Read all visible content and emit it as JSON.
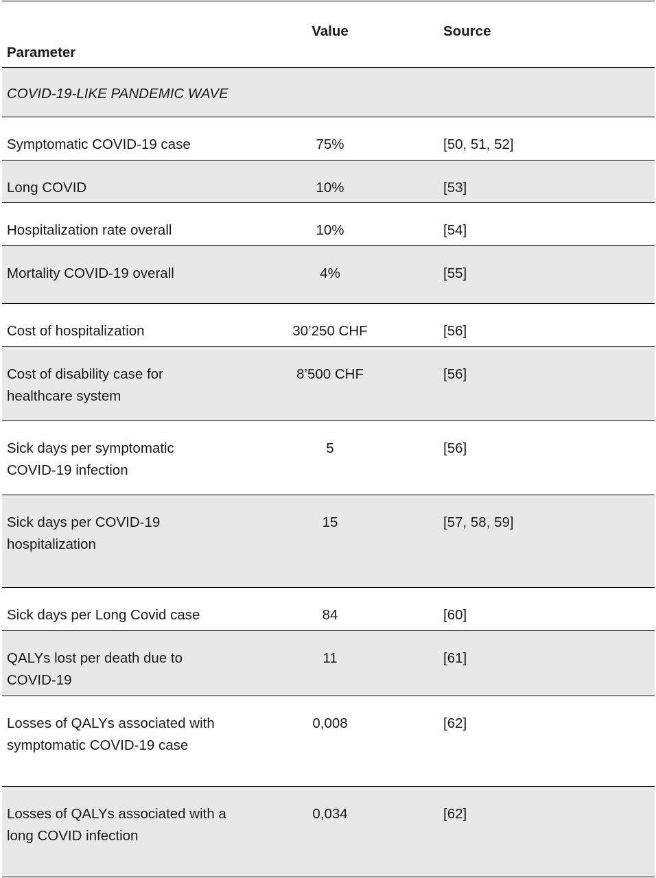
{
  "header": {
    "parameter": "Parameter",
    "value": "Value",
    "source": "Source"
  },
  "section": "COVID-19-LIKE PANDEMIC WAVE",
  "rows": [
    {
      "parameter": "Symptomatic COVID-19 case",
      "value": "75%",
      "source": "[50, 51, 52]"
    },
    {
      "parameter": "Long COVID",
      "value": "10%",
      "source": "[53]"
    },
    {
      "parameter": "Hospitalization rate overall",
      "value": "10%",
      "source": "[54]"
    },
    {
      "parameter": "Mortality COVID-19 overall",
      "value": "4%",
      "source": "[55]"
    },
    {
      "parameter": "Cost of hospitalization",
      "value": "30’250 CHF",
      "source": "[56]"
    },
    {
      "parameter": "Cost of disability case for healthcare system",
      "value": "8’500 CHF",
      "source": "[56]"
    },
    {
      "parameter": "Sick days per symptomatic COVID-19 infection",
      "value": "5",
      "source": "[56]"
    },
    {
      "parameter": "Sick days per COVID-19 hospitalization",
      "value": "15",
      "source": "[57, 58, 59]"
    },
    {
      "parameter": "Sick days per Long Covid case",
      "value": "84",
      "source": "[60]"
    },
    {
      "parameter": "QALYs lost per death due to COVID-19",
      "value": "11",
      "source": "[61]"
    },
    {
      "parameter": "Losses of QALYs associated with symptomatic COVID-19 case",
      "value": "0,008",
      "source": "[62]"
    },
    {
      "parameter": "Losses of QALYs associated with a long COVID infection",
      "value": "0,034",
      "source": "[62]"
    }
  ]
}
